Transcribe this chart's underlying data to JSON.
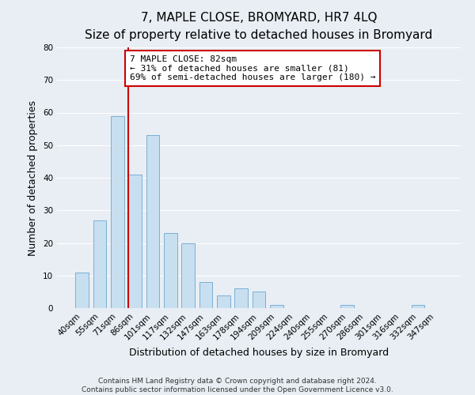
{
  "title": "7, MAPLE CLOSE, BROMYARD, HR7 4LQ",
  "subtitle": "Size of property relative to detached houses in Bromyard",
  "xlabel": "Distribution of detached houses by size in Bromyard",
  "ylabel": "Number of detached properties",
  "bar_labels": [
    "40sqm",
    "55sqm",
    "71sqm",
    "86sqm",
    "101sqm",
    "117sqm",
    "132sqm",
    "147sqm",
    "163sqm",
    "178sqm",
    "194sqm",
    "209sqm",
    "224sqm",
    "240sqm",
    "255sqm",
    "270sqm",
    "286sqm",
    "301sqm",
    "316sqm",
    "332sqm",
    "347sqm"
  ],
  "bar_values": [
    11,
    27,
    59,
    41,
    53,
    23,
    20,
    8,
    4,
    6,
    5,
    1,
    0,
    0,
    0,
    1,
    0,
    0,
    0,
    1,
    0
  ],
  "bar_color": "#c8dff0",
  "bar_edge_color": "#7bafd4",
  "vline_x_label": "86sqm",
  "vline_color": "#cc0000",
  "ylim": [
    0,
    80
  ],
  "yticks": [
    0,
    10,
    20,
    30,
    40,
    50,
    60,
    70,
    80
  ],
  "annotation_title": "7 MAPLE CLOSE: 82sqm",
  "annotation_line1": "← 31% of detached houses are smaller (81)",
  "annotation_line2": "69% of semi-detached houses are larger (180) →",
  "annotation_box_facecolor": "#ffffff",
  "annotation_box_edgecolor": "#cc0000",
  "footer_line1": "Contains HM Land Registry data © Crown copyright and database right 2024.",
  "footer_line2": "Contains public sector information licensed under the Open Government Licence v3.0.",
  "background_color": "#e8eef4",
  "grid_color": "#ffffff",
  "title_fontsize": 11,
  "subtitle_fontsize": 9,
  "axis_label_fontsize": 9,
  "tick_fontsize": 7.5,
  "annotation_fontsize": 8,
  "footer_fontsize": 6.5
}
